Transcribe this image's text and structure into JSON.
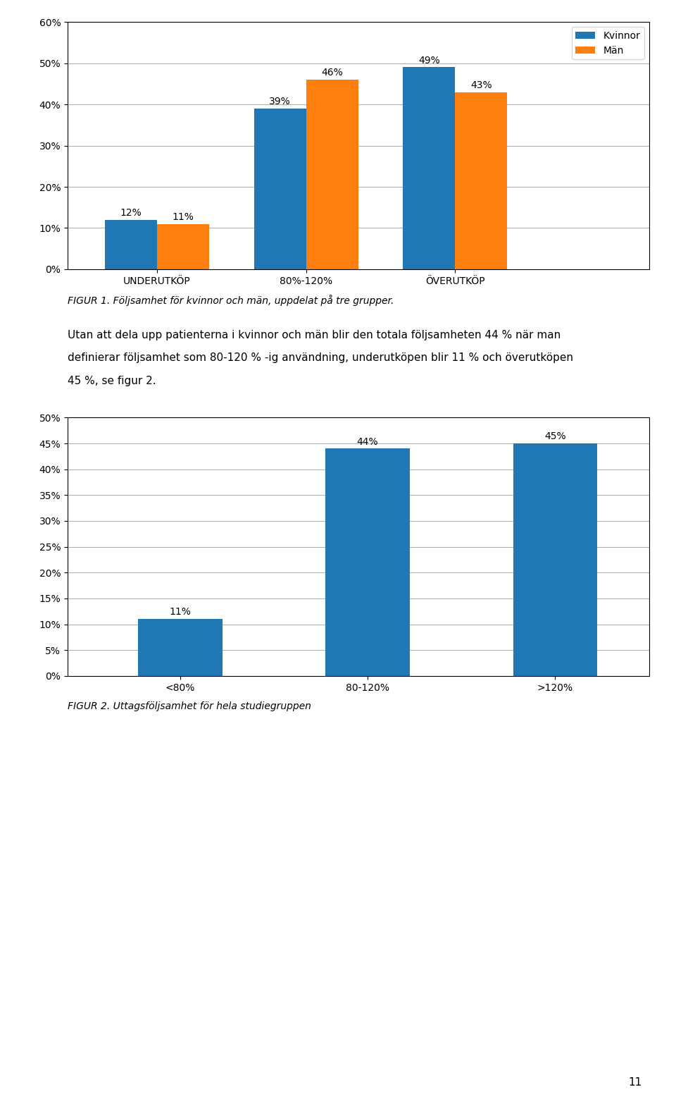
{
  "chart_data": [
    {
      "type": "bar",
      "categories": [
        "UNDERUTKÖP",
        "80%-120%",
        "ÖVERUTKÖP"
      ],
      "series": [
        {
          "name": "Kvinnor",
          "values": [
            0.12,
            0.39,
            0.49
          ],
          "value_labels": [
            "12%",
            "39%",
            "49%"
          ]
        },
        {
          "name": "Män",
          "values": [
            0.11,
            0.46,
            0.43
          ],
          "value_labels": [
            "11%",
            "46%",
            "43%"
          ]
        }
      ],
      "ylim": [
        0,
        0.6
      ],
      "yticks": [
        {
          "value": 0.0,
          "label": "0%"
        },
        {
          "value": 0.1,
          "label": "10%"
        },
        {
          "value": 0.2,
          "label": "20%"
        },
        {
          "value": 0.3,
          "label": "30%"
        },
        {
          "value": 0.4,
          "label": "40%"
        },
        {
          "value": 0.5,
          "label": "50%"
        },
        {
          "value": 0.6,
          "label": "60%"
        }
      ],
      "grid": true,
      "legend": "upper right",
      "data_labels": true,
      "caption": "FIGUR 1. Följsamhet för kvinnor och män, uppdelat på tre grupper."
    },
    {
      "type": "bar",
      "categories": [
        "<80%",
        "80-120%",
        ">120%"
      ],
      "values": [
        0.11,
        0.44,
        0.45
      ],
      "value_labels": [
        "11%",
        "44%",
        "45%"
      ],
      "ylim": [
        0,
        0.5
      ],
      "yticks": [
        {
          "value": 0.0,
          "label": "0%"
        },
        {
          "value": 0.05,
          "label": "5%"
        },
        {
          "value": 0.1,
          "label": "10%"
        },
        {
          "value": 0.15,
          "label": "15%"
        },
        {
          "value": 0.2,
          "label": "20%"
        },
        {
          "value": 0.25,
          "label": "25%"
        },
        {
          "value": 0.3,
          "label": "30%"
        },
        {
          "value": 0.35,
          "label": "35%"
        },
        {
          "value": 0.4,
          "label": "40%"
        },
        {
          "value": 0.45,
          "label": "45%"
        },
        {
          "value": 0.5,
          "label": "50%"
        }
      ],
      "grid": true,
      "data_labels": true,
      "caption": "FIGUR 2. Uttagsföljsamhet för hela studiegruppen"
    }
  ],
  "paragraph": [
    "Utan att dela upp patienterna i kvinnor och män blir den totala följsamheten 44 % när man",
    "definierar följsamhet som 80-120 % -ig användning, underutköpen blir 11 % och överutköpen",
    "45 %, se figur 2."
  ],
  "page_number": "11"
}
